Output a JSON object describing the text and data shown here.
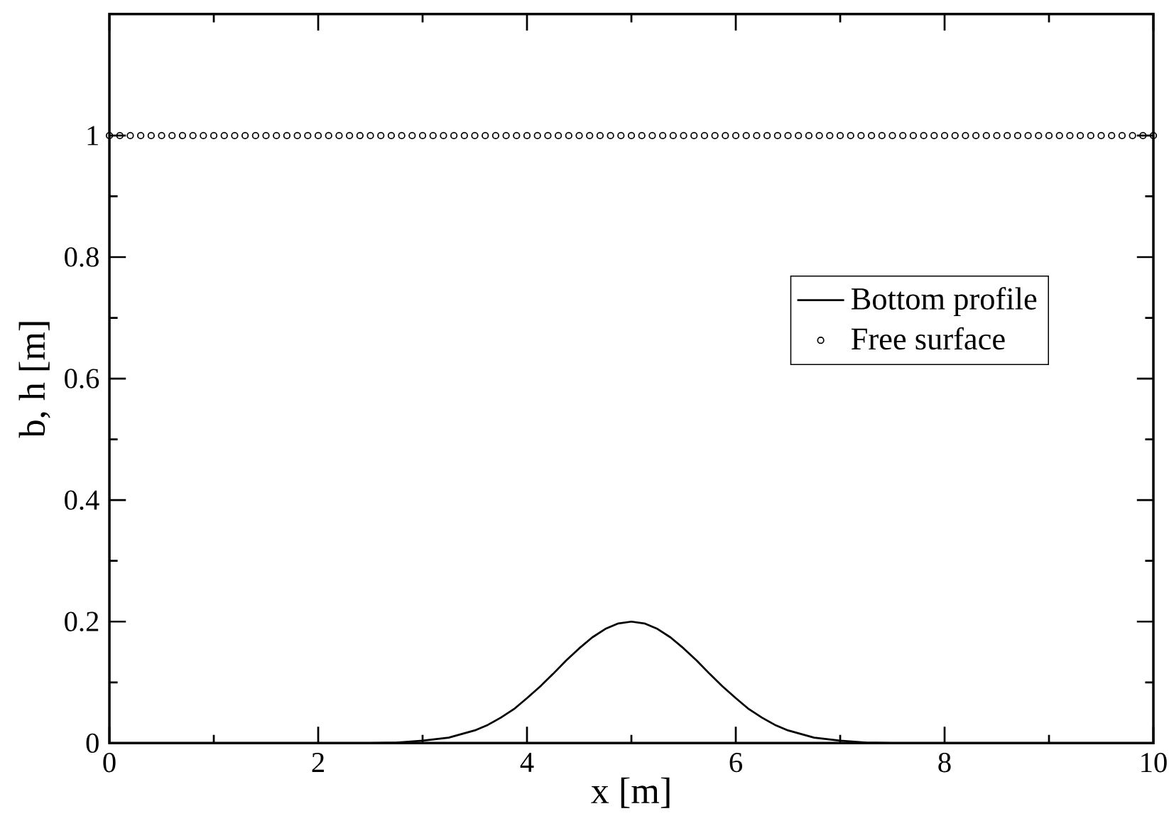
{
  "chart_data": {
    "type": "line",
    "xlabel": "x [m]",
    "ylabel": "b, h [m]",
    "xlim": [
      0,
      10
    ],
    "ylim": [
      0,
      1.2
    ],
    "xticks": [
      0,
      2,
      4,
      6,
      8,
      10
    ],
    "yticks": [
      0,
      0.2,
      0.4,
      0.6,
      0.8,
      1
    ],
    "legend": "right",
    "grid": false,
    "series": [
      {
        "name": "Bottom profile",
        "color": "#000000",
        "line_style": "solid",
        "marker": "none",
        "x": [
          0,
          1,
          2,
          2.5,
          2.75,
          3,
          3.25,
          3.5,
          3.625,
          3.75,
          3.875,
          4,
          4.125,
          4.25,
          4.375,
          4.5,
          4.625,
          4.75,
          4.875,
          5,
          5.125,
          5.25,
          5.375,
          5.5,
          5.625,
          5.75,
          5.875,
          6,
          6.125,
          6.25,
          6.375,
          6.5,
          6.75,
          7,
          7.25,
          7.5,
          8,
          9,
          10
        ],
        "values": [
          0,
          0,
          0,
          0,
          0.001,
          0.004,
          0.009,
          0.021,
          0.03,
          0.042,
          0.056,
          0.074,
          0.093,
          0.114,
          0.136,
          0.156,
          0.174,
          0.188,
          0.197,
          0.2,
          0.197,
          0.188,
          0.174,
          0.156,
          0.136,
          0.114,
          0.093,
          0.074,
          0.056,
          0.042,
          0.03,
          0.021,
          0.009,
          0.004,
          0.001,
          0,
          0,
          0,
          0
        ]
      },
      {
        "name": "Free surface",
        "type": "scatter",
        "color": "#000000",
        "marker": "circle",
        "x": [
          0,
          0.1,
          0.2,
          0.3,
          0.4,
          0.5,
          0.6,
          0.7,
          0.8,
          0.9,
          1,
          1.1,
          1.2,
          1.3,
          1.4,
          1.5,
          1.6,
          1.7,
          1.8,
          1.9,
          2,
          2.1,
          2.2,
          2.3,
          2.4,
          2.5,
          2.6,
          2.7,
          2.8,
          2.9,
          3,
          3.1,
          3.2,
          3.3,
          3.4,
          3.5,
          3.6,
          3.7,
          3.8,
          3.9,
          4,
          4.1,
          4.2,
          4.3,
          4.4,
          4.5,
          4.6,
          4.7,
          4.8,
          4.9,
          5,
          5.1,
          5.2,
          5.3,
          5.4,
          5.5,
          5.6,
          5.7,
          5.8,
          5.9,
          6,
          6.1,
          6.2,
          6.3,
          6.4,
          6.5,
          6.6,
          6.7,
          6.8,
          6.9,
          7,
          7.1,
          7.2,
          7.3,
          7.4,
          7.5,
          7.6,
          7.7,
          7.8,
          7.9,
          8,
          8.1,
          8.2,
          8.3,
          8.4,
          8.5,
          8.6,
          8.7,
          8.8,
          8.9,
          9,
          9.1,
          9.2,
          9.3,
          9.4,
          9.5,
          9.6,
          9.7,
          9.8,
          9.9,
          10
        ],
        "values": [
          1,
          1,
          1,
          1,
          1,
          1,
          1,
          1,
          1,
          1,
          1,
          1,
          1,
          1,
          1,
          1,
          1,
          1,
          1,
          1,
          1,
          1,
          1,
          1,
          1,
          1,
          1,
          1,
          1,
          1,
          1,
          1,
          1,
          1,
          1,
          1,
          1,
          1,
          1,
          1,
          1,
          1,
          1,
          1,
          1,
          1,
          1,
          1,
          1,
          1,
          1,
          1,
          1,
          1,
          1,
          1,
          1,
          1,
          1,
          1,
          1,
          1,
          1,
          1,
          1,
          1,
          1,
          1,
          1,
          1,
          1,
          1,
          1,
          1,
          1,
          1,
          1,
          1,
          1,
          1,
          1,
          1,
          1,
          1,
          1,
          1,
          1,
          1,
          1,
          1,
          1,
          1,
          1,
          1,
          1,
          1,
          1,
          1,
          1,
          1,
          1
        ]
      }
    ]
  }
}
